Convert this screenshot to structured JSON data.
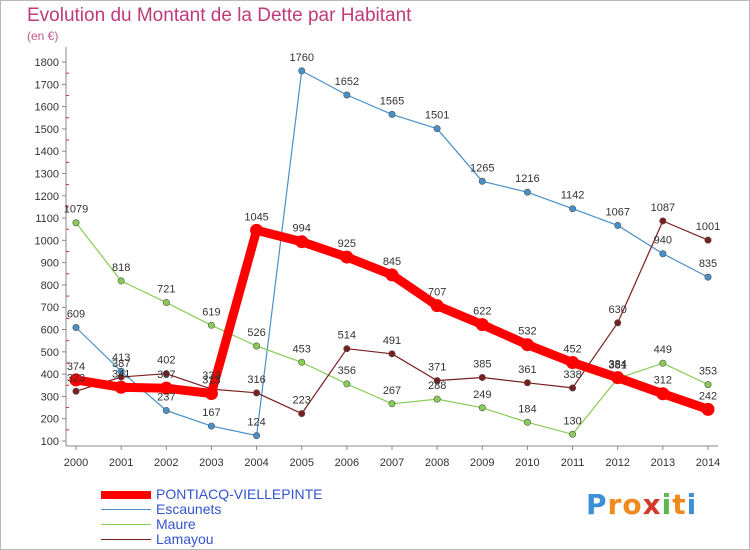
{
  "title": "Evolution du Montant de la Dette par Habitant",
  "unit": "(en €)",
  "brand": {
    "text": "Proxiti",
    "letters": [
      "P",
      "r",
      "o",
      "x",
      "i",
      "t",
      "i"
    ],
    "colors": [
      "#3d8fd6",
      "#f08a1c",
      "#f08a1c",
      "#d33a2a",
      "#5bb84a",
      "#f08a1c",
      "#3d8fd6"
    ]
  },
  "chart_data": {
    "type": "line",
    "title": "Evolution du Montant de la Dette par Habitant",
    "ylabel": "(en €)",
    "x": [
      "2000",
      "2001",
      "2002",
      "2003",
      "2004",
      "2005",
      "2006",
      "2007",
      "2008",
      "2009",
      "2010",
      "2011",
      "2012",
      "2013",
      "2014"
    ],
    "yticks": [
      100,
      200,
      300,
      400,
      500,
      600,
      700,
      800,
      900,
      1000,
      1100,
      1200,
      1300,
      1400,
      1500,
      1600,
      1700,
      1800
    ],
    "ylim": [
      100,
      1800
    ],
    "grid": false,
    "legend_position": "bottom-left",
    "series": [
      {
        "name": "Escaunets",
        "color": "#4a90c8",
        "values": [
          609,
          413,
          237,
          167,
          124,
          1760,
          1652,
          1565,
          1501,
          1265,
          1216,
          1142,
          1067,
          940,
          835
        ],
        "labels": [
          "609",
          "413",
          "237",
          "167",
          "124",
          "1760",
          "1652",
          "1565",
          "1501",
          "1265",
          "1216",
          "1142",
          "1067",
          "940",
          "835"
        ]
      },
      {
        "name": "Maure",
        "color": "#88cc55",
        "values": [
          1079,
          818,
          721,
          619,
          526,
          453,
          356,
          267,
          288,
          249,
          184,
          130,
          381,
          449,
          353
        ],
        "labels": [
          "1079",
          "818",
          "721",
          "619",
          "526",
          "453",
          "356",
          "267",
          "288",
          "249",
          "184",
          "130",
          "381",
          "449",
          "353"
        ]
      },
      {
        "name": "Lamayou",
        "color": "#7a1f1f",
        "values": [
          323,
          387,
          402,
          333,
          316,
          223,
          514,
          491,
          371,
          385,
          361,
          338,
          630,
          1087,
          1001
        ],
        "labels": [
          "323",
          "387",
          "402",
          "333",
          "316",
          "223",
          "514",
          "491",
          "371",
          "385",
          "361",
          "338",
          "630",
          "1087",
          "1001"
        ]
      },
      {
        "name": "PONTIACQ-VIELLEPINTE",
        "color": "#ff0000",
        "values": [
          374,
          341,
          337,
          313,
          1045,
          994,
          925,
          845,
          707,
          622,
          532,
          452,
          384,
          312,
          242
        ],
        "labels": [
          "374",
          "341",
          "337",
          "313",
          "1045",
          "994",
          "925",
          "845",
          "707",
          "622",
          "532",
          "452",
          "384",
          "312",
          "242"
        ]
      }
    ]
  }
}
